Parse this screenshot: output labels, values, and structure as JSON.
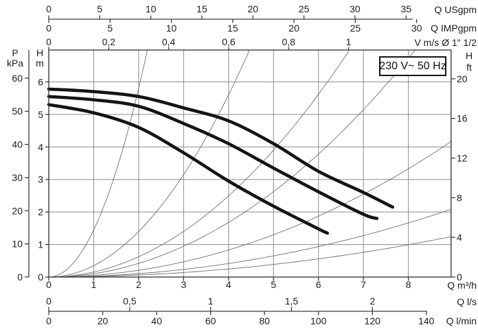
{
  "chart_data": {
    "type": "line",
    "description": "Circulator pump head-flow performance curves at three speeds with pipe/velocity loss parabolas",
    "voltage_label": "230 V~ 50 Hz",
    "grid": {
      "x_step_m3h": 1,
      "y_step_m": 1,
      "grid_on": true
    },
    "x_range_m3h": [
      0,
      8.95
    ],
    "y_range_m": [
      0,
      6.98
    ],
    "axes": {
      "usgpm": {
        "title": "Q USgpm",
        "labels": [
          "0",
          "5",
          "10",
          "15",
          "20",
          "25",
          "30",
          "35"
        ],
        "values": [
          0,
          5,
          10,
          15,
          20,
          25,
          30,
          35
        ],
        "m3h_per_unit": 0.2271
      },
      "impgpm": {
        "title": "Q IMPgpm",
        "labels": [
          "0",
          "5",
          "10",
          "15",
          "20",
          "25",
          "30"
        ],
        "values": [
          0,
          5,
          10,
          15,
          20,
          25,
          30
        ],
        "m3h_per_unit": 0.2728
      },
      "velocity": {
        "title": "V m/s Ø 1\" 1/2",
        "labels": [
          "0",
          "0,2",
          "0,4",
          "0,6",
          "0,8",
          "1"
        ],
        "values": [
          0,
          0.2,
          0.4,
          0.6,
          0.8,
          1
        ],
        "m3h_per_unit": 6.67
      },
      "m3h": {
        "title": "Q m³/h",
        "labels": [
          "0",
          "1",
          "2",
          "3",
          "4",
          "5",
          "6",
          "7",
          "8"
        ],
        "values": [
          0,
          1,
          2,
          3,
          4,
          5,
          6,
          7,
          8
        ],
        "m3h_per_unit": 1
      },
      "ls": {
        "title": "Q l/s",
        "labels": [
          "0",
          "0,5",
          "1",
          "1,5",
          "2"
        ],
        "values": [
          0,
          0.5,
          1,
          1.5,
          2
        ],
        "m3h_per_unit": 3.6
      },
      "lmin": {
        "title": "Q l/min",
        "labels": [
          "0",
          "20",
          "40",
          "60",
          "80",
          "100",
          "120",
          "140"
        ],
        "values": [
          0,
          20,
          40,
          60,
          80,
          100,
          120,
          140
        ],
        "m3h_per_unit": 0.06
      },
      "head_m": {
        "title_letter": "H",
        "title_unit": "m",
        "labels": [
          "6",
          "5",
          "4",
          "3",
          "2",
          "1",
          "0"
        ],
        "values": [
          6,
          5,
          4,
          3,
          2,
          1,
          0
        ],
        "m_per_unit": 1
      },
      "kpa": {
        "title_letter": "P",
        "title_unit": "kPa",
        "labels": [
          "60",
          "50",
          "40",
          "30",
          "20",
          "10",
          "0"
        ],
        "values": [
          60,
          50,
          40,
          30,
          20,
          10,
          0
        ],
        "m_per_unit": 0.10194
      },
      "ft": {
        "title_letter": "H",
        "title_unit": "ft",
        "labels": [
          "20",
          "16",
          "12",
          "8",
          "4",
          "0"
        ],
        "values": [
          20,
          16,
          12,
          8,
          4,
          0
        ],
        "m_per_unit": 0.3048
      }
    },
    "pump_curves": [
      {
        "name": "speed-3",
        "points": [
          [
            0,
            5.78
          ],
          [
            1,
            5.7
          ],
          [
            2,
            5.55
          ],
          [
            3,
            5.2
          ],
          [
            4,
            4.8
          ],
          [
            5,
            4.1
          ],
          [
            6,
            3.25
          ],
          [
            7,
            2.6
          ],
          [
            7.65,
            2.15
          ]
        ]
      },
      {
        "name": "speed-2",
        "points": [
          [
            0,
            5.55
          ],
          [
            1,
            5.45
          ],
          [
            2,
            5.25
          ],
          [
            3,
            4.72
          ],
          [
            4,
            4.1
          ],
          [
            5,
            3.35
          ],
          [
            6,
            2.62
          ],
          [
            7,
            1.93
          ],
          [
            7.3,
            1.8
          ]
        ]
      },
      {
        "name": "speed-1",
        "points": [
          [
            0,
            5.3
          ],
          [
            1,
            5.05
          ],
          [
            2,
            4.6
          ],
          [
            3,
            3.82
          ],
          [
            4,
            2.95
          ],
          [
            5,
            2.18
          ],
          [
            6,
            1.48
          ],
          [
            6.2,
            1.35
          ]
        ]
      }
    ],
    "pipe_loss_curves": {
      "model": "H = k × Q²",
      "k_values": [
        1.45,
        0.35,
        0.156,
        0.105,
        0.052,
        0.026,
        0.0155
      ]
    }
  },
  "colors": {
    "background": "#ffffff",
    "pump_curve": "#141414",
    "pipe_loss_curve": "#6f6f6f",
    "grid": "#8a8a8a",
    "axis": "#3d3d3d",
    "text": "#1b1b1b"
  }
}
